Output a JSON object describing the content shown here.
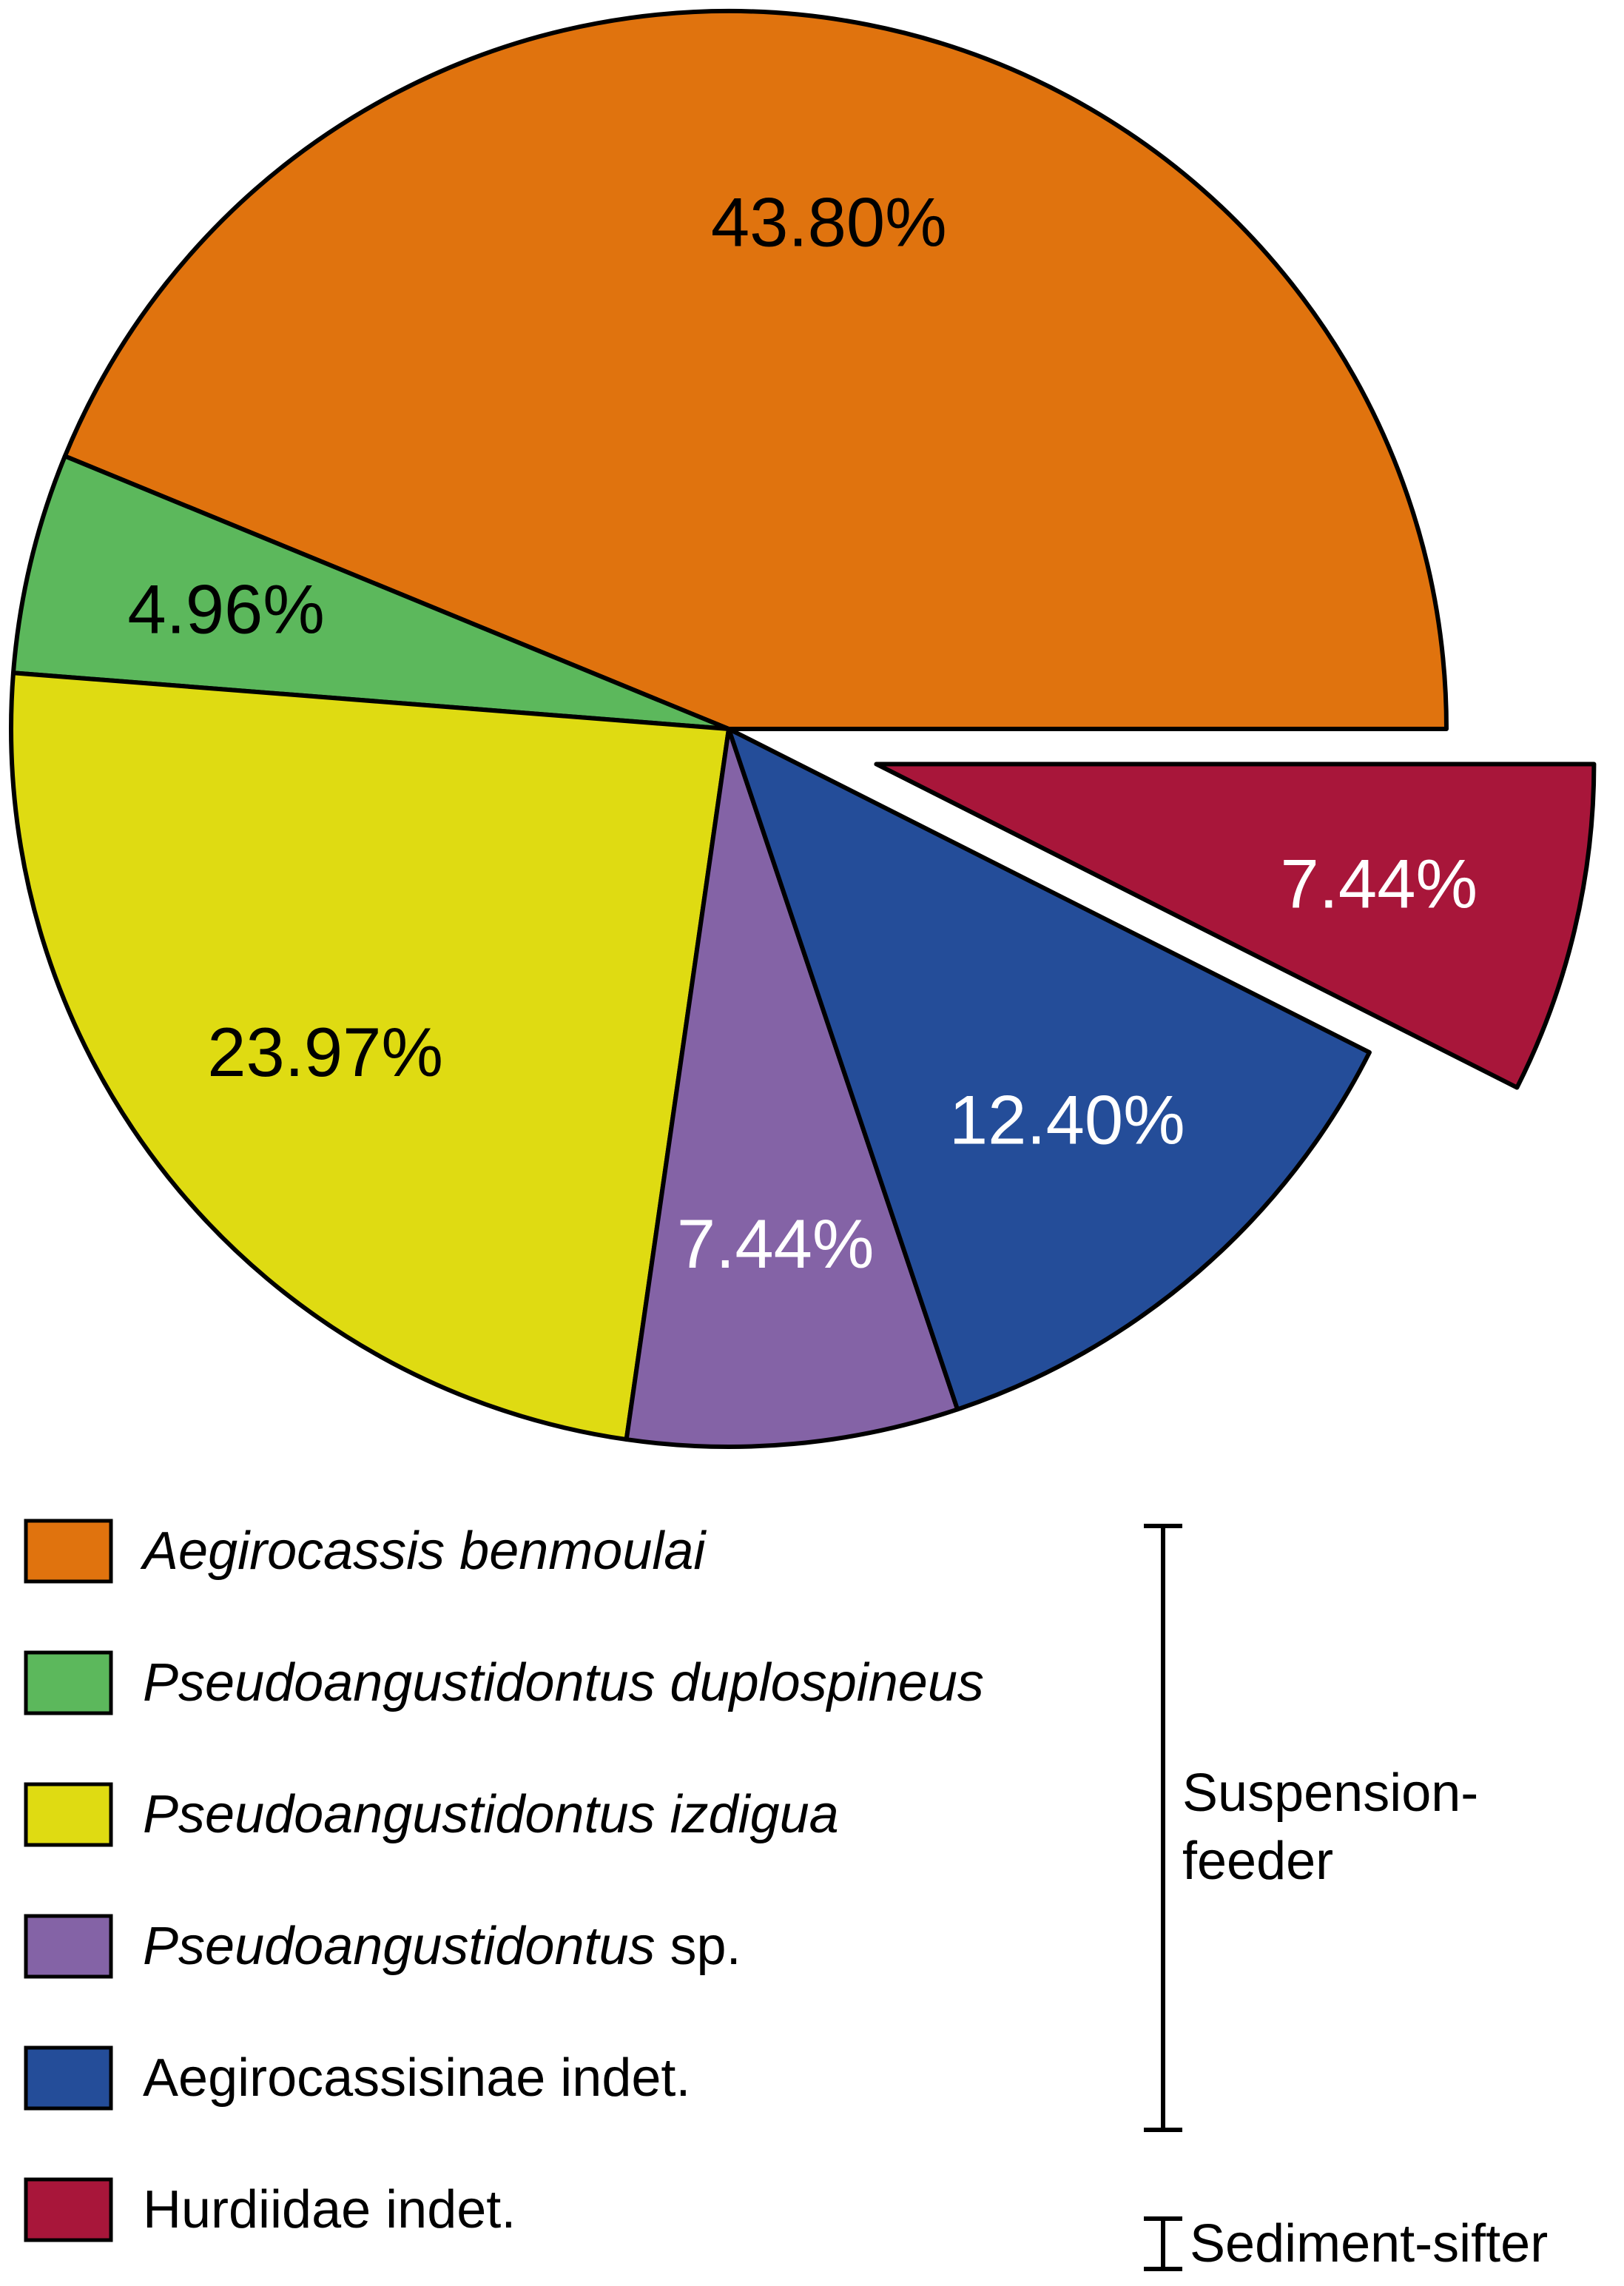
{
  "chart_data": {
    "type": "pie",
    "slices": [
      {
        "name_parts": [
          {
            "text": "Aegirocassis benmoulai",
            "italic": true
          }
        ],
        "value": 43.8,
        "label": "43.80%",
        "color": "#E0730E",
        "label_color": "#000000",
        "exploded": false
      },
      {
        "name_parts": [
          {
            "text": "Pseudoangustidontus duplospineus",
            "italic": true
          }
        ],
        "value": 4.96,
        "label": "4.96%",
        "color": "#5CB85C",
        "label_color": "#000000",
        "exploded": false
      },
      {
        "name_parts": [
          {
            "text": "Pseudoangustidontus izdigua",
            "italic": true
          }
        ],
        "value": 23.97,
        "label": "23.97%",
        "color": "#DFDB12",
        "label_color": "#000000",
        "exploded": false
      },
      {
        "name_parts": [
          {
            "text": "Pseudoangustidontus",
            "italic": true
          },
          {
            "text": " sp.",
            "italic": false
          }
        ],
        "value": 7.44,
        "label": "7.44%",
        "color": "#8463A6",
        "label_color": "#ffffff",
        "exploded": false
      },
      {
        "name_parts": [
          {
            "text": "Aegirocassisinae indet.",
            "italic": false
          }
        ],
        "value": 12.4,
        "label": "12.40%",
        "color": "#244D99",
        "label_color": "#ffffff",
        "exploded": false
      },
      {
        "name_parts": [
          {
            "text": "Hurdiidae indet.",
            "italic": false
          }
        ],
        "value": 7.44,
        "label": "7.44%",
        "color": "#A8163A",
        "label_color": "#ffffff",
        "exploded": true
      }
    ],
    "groups": [
      {
        "lines": [
          "Suspension-",
          "feeder"
        ],
        "members": [
          0,
          1,
          2,
          3,
          4
        ]
      },
      {
        "lines": [
          "Sediment-sifter"
        ],
        "members": [
          5
        ]
      }
    ]
  }
}
